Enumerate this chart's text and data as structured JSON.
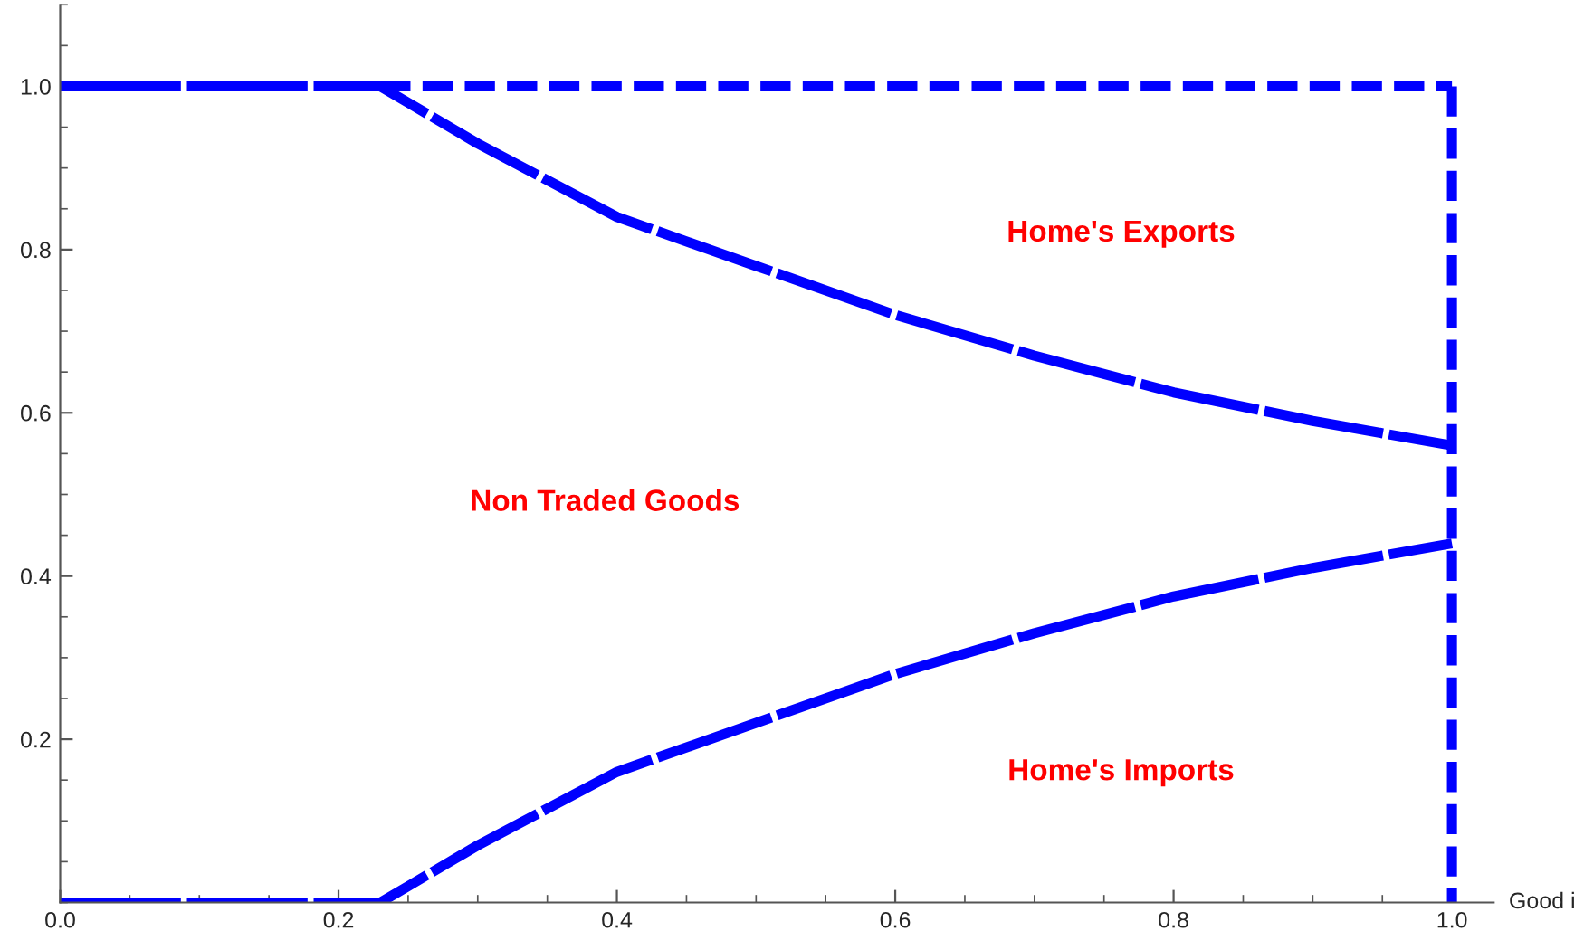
{
  "chart_data": {
    "type": "line",
    "xlabel": "Good i",
    "xlim": [
      0,
      1.03
    ],
    "ylim": [
      0,
      1.1
    ],
    "xticks": [
      {
        "value": 0,
        "label": "0.0"
      },
      0.2,
      0.4,
      0.6,
      0.8,
      {
        "value": 1,
        "label": "1.0"
      }
    ],
    "yticks": [
      0.2,
      0.4,
      0.6,
      0.8,
      {
        "value": 1,
        "label": "1.0"
      }
    ],
    "grid": false,
    "legend": false,
    "marker": "none",
    "line_style": "dashed",
    "series": [
      {
        "color": "#0000ff",
        "x": [
          0,
          0.23,
          0.25,
          0.3,
          0.4,
          0.5,
          0.6,
          0.7,
          0.8,
          0.9,
          1.0
        ],
        "values": [
          1,
          1,
          0.98,
          0.93,
          0.84,
          0.78,
          0.72,
          0.67,
          0.625,
          0.59,
          0.56
        ]
      },
      {
        "color": "#0000ff",
        "x": [
          0,
          0.23,
          0.25,
          0.3,
          0.4,
          0.5,
          0.6,
          0.7,
          0.8,
          0.9,
          1.0
        ],
        "values": [
          0,
          0,
          0.02,
          0.07,
          0.16,
          0.22,
          0.28,
          0.33,
          0.375,
          0.41,
          0.44
        ]
      },
      {
        "color": "#0000ff",
        "x": [
          0.23,
          1.0
        ],
        "values": [
          1,
          1
        ]
      },
      {
        "color": "#0000ff",
        "x": [
          1.0,
          1.0
        ],
        "values": [
          1,
          0
        ]
      }
    ],
    "annotations": [
      "Home's Exports",
      "Non Traded Goods",
      "Home's Imports"
    ]
  }
}
